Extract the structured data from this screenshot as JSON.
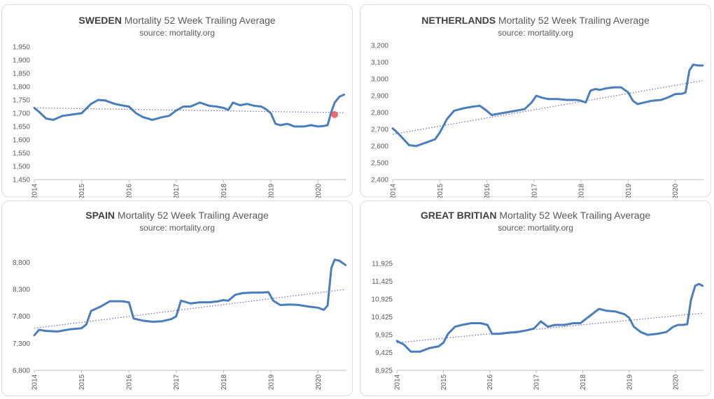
{
  "colors": {
    "series": "#4a7ebb",
    "trend": "#7b6fc4",
    "axis": "#bfbfbf",
    "text": "#595959"
  },
  "chart_data": [
    {
      "type": "line",
      "title_bold": "SWEDEN",
      "title": "Mortality 52 Week Trailing Average",
      "subtitle": "source: mortality.org",
      "x_ticks": [
        "2014",
        "2015",
        "2016",
        "2017",
        "2018",
        "2019",
        "2020"
      ],
      "y_ticks": [
        "1,950",
        "1,900",
        "1,850",
        "1,800",
        "1,750",
        "1,700",
        "1,650",
        "1,600",
        "1,550",
        "1,500",
        "1,450"
      ],
      "ylim": [
        1450,
        1950
      ],
      "xlim": [
        2014,
        2020.6
      ],
      "series": [
        {
          "x": [
            2014.0,
            2014.1,
            2014.25,
            2014.4,
            2014.6,
            2014.8,
            2015.0,
            2015.2,
            2015.35,
            2015.5,
            2015.7,
            2015.9,
            2016.0,
            2016.15,
            2016.3,
            2016.5,
            2016.7,
            2016.85,
            2017.0,
            2017.15,
            2017.3,
            2017.5,
            2017.7,
            2017.85,
            2018.0,
            2018.1,
            2018.2,
            2018.35,
            2018.5,
            2018.65,
            2018.8,
            2018.9,
            2019.0,
            2019.1,
            2019.2,
            2019.35,
            2019.5,
            2019.7,
            2019.85,
            2020.0,
            2020.12,
            2020.2,
            2020.27,
            2020.35,
            2020.45,
            2020.55
          ],
          "values": [
            1720,
            1705,
            1680,
            1675,
            1690,
            1695,
            1700,
            1735,
            1750,
            1748,
            1735,
            1728,
            1725,
            1700,
            1685,
            1675,
            1685,
            1690,
            1710,
            1725,
            1725,
            1740,
            1728,
            1725,
            1720,
            1712,
            1740,
            1730,
            1735,
            1728,
            1725,
            1715,
            1700,
            1660,
            1655,
            1660,
            1650,
            1650,
            1655,
            1650,
            1652,
            1655,
            1700,
            1740,
            1762,
            1770
          ]
        }
      ],
      "trend": {
        "start": 1720,
        "end": 1702
      },
      "cursor": {
        "x": 2020.35,
        "y": 1695
      }
    },
    {
      "type": "line",
      "title_bold": "NETHERLANDS",
      "title": "Mortality 52 Week Trailing Average",
      "subtitle": "source: mortality.org",
      "x_ticks": [
        "2014",
        "2015",
        "2016",
        "2017",
        "2018",
        "2019",
        "2020"
      ],
      "y_ticks": [
        "3,200",
        "3,100",
        "3,000",
        "2,900",
        "2,800",
        "2,700",
        "2,600",
        "2,500",
        "2,400"
      ],
      "ylim": [
        2400,
        3200
      ],
      "xlim": [
        2014,
        2020.6
      ],
      "series": [
        {
          "x": [
            2014.0,
            2014.1,
            2014.2,
            2014.35,
            2014.5,
            2014.7,
            2014.9,
            2015.0,
            2015.15,
            2015.3,
            2015.5,
            2015.7,
            2015.85,
            2016.0,
            2016.1,
            2016.2,
            2016.4,
            2016.6,
            2016.8,
            2016.95,
            2017.05,
            2017.15,
            2017.3,
            2017.5,
            2017.7,
            2017.9,
            2018.0,
            2018.1,
            2018.2,
            2018.3,
            2018.4,
            2018.55,
            2018.7,
            2018.85,
            2019.0,
            2019.1,
            2019.2,
            2019.35,
            2019.5,
            2019.7,
            2019.85,
            2020.0,
            2020.15,
            2020.22,
            2020.3,
            2020.38,
            2020.5,
            2020.58
          ],
          "values": [
            2705,
            2680,
            2650,
            2605,
            2600,
            2620,
            2640,
            2680,
            2760,
            2810,
            2825,
            2835,
            2840,
            2810,
            2785,
            2790,
            2800,
            2810,
            2820,
            2860,
            2900,
            2890,
            2880,
            2880,
            2875,
            2875,
            2870,
            2860,
            2930,
            2940,
            2935,
            2945,
            2950,
            2950,
            2920,
            2870,
            2850,
            2860,
            2870,
            2875,
            2890,
            2910,
            2912,
            2920,
            3050,
            3085,
            3080,
            3080
          ]
        }
      ],
      "trend": {
        "start": 2670,
        "end": 2990
      }
    },
    {
      "type": "line",
      "title_bold": "SPAIN",
      "title": "Mortality 52 Week Trailing Average",
      "subtitle": "source: mortality.org",
      "x_ticks": [
        "2014",
        "2015",
        "2016",
        "2017",
        "2018",
        "2019",
        "2020"
      ],
      "y_ticks": [
        "8,800",
        "8,300",
        "7,800",
        "7,300",
        "6,800"
      ],
      "ylim": [
        6800,
        9000
      ],
      "xlim": [
        2014,
        2020.6
      ],
      "series": [
        {
          "x": [
            2014.0,
            2014.1,
            2014.25,
            2014.5,
            2014.75,
            2015.0,
            2015.1,
            2015.2,
            2015.4,
            2015.6,
            2015.85,
            2016.0,
            2016.1,
            2016.3,
            2016.5,
            2016.7,
            2016.9,
            2017.0,
            2017.1,
            2017.3,
            2017.5,
            2017.7,
            2017.9,
            2018.0,
            2018.1,
            2018.25,
            2018.4,
            2018.6,
            2018.8,
            2018.95,
            2019.05,
            2019.2,
            2019.4,
            2019.6,
            2019.8,
            2020.0,
            2020.12,
            2020.2,
            2020.28,
            2020.35,
            2020.45,
            2020.58
          ],
          "values": [
            7450,
            7550,
            7530,
            7520,
            7560,
            7580,
            7650,
            7900,
            7980,
            8080,
            8080,
            8060,
            7760,
            7720,
            7700,
            7710,
            7750,
            7800,
            8090,
            8040,
            8060,
            8060,
            8080,
            8100,
            8090,
            8200,
            8230,
            8240,
            8240,
            8250,
            8090,
            8010,
            8020,
            8010,
            7980,
            7960,
            7920,
            8000,
            8700,
            8850,
            8830,
            8750
          ]
        }
      ],
      "trend": {
        "start": 7580,
        "end": 8300
      }
    },
    {
      "type": "line",
      "title_bold": "GREAT BRITIAN",
      "title": "Mortality 52 Week Trailing Average",
      "subtitle": "source: mortality.org",
      "x_ticks": [
        "2014",
        "2015",
        "2016",
        "2017",
        "2018",
        "2019",
        "2020"
      ],
      "y_ticks": [
        "11,925",
        "11,425",
        "10,925",
        "10,425",
        "9,925",
        "9,425",
        "8,925"
      ],
      "ylim": [
        8925,
        12300
      ],
      "xlim": [
        2014,
        2020.6
      ],
      "series": [
        {
          "x": [
            2014.0,
            2014.15,
            2014.3,
            2014.5,
            2014.7,
            2014.9,
            2015.0,
            2015.1,
            2015.25,
            2015.4,
            2015.6,
            2015.8,
            2015.95,
            2016.05,
            2016.2,
            2016.4,
            2016.6,
            2016.8,
            2016.95,
            2017.1,
            2017.25,
            2017.4,
            2017.6,
            2017.8,
            2017.95,
            2018.1,
            2018.25,
            2018.35,
            2018.5,
            2018.7,
            2018.9,
            2019.0,
            2019.1,
            2019.25,
            2019.4,
            2019.6,
            2019.8,
            2019.95,
            2020.05,
            2020.15,
            2020.25,
            2020.33,
            2020.42,
            2020.5,
            2020.58
          ],
          "values": [
            9750,
            9650,
            9450,
            9450,
            9550,
            9600,
            9700,
            9950,
            10150,
            10200,
            10250,
            10250,
            10200,
            9950,
            9950,
            9980,
            10000,
            10050,
            10100,
            10300,
            10150,
            10200,
            10200,
            10250,
            10250,
            10400,
            10550,
            10650,
            10600,
            10580,
            10500,
            10400,
            10150,
            10000,
            9920,
            9950,
            10000,
            10150,
            10200,
            10200,
            10220,
            10900,
            11300,
            11350,
            11300
          ]
        }
      ],
      "trend": {
        "start": 9700,
        "end": 10530
      }
    }
  ]
}
